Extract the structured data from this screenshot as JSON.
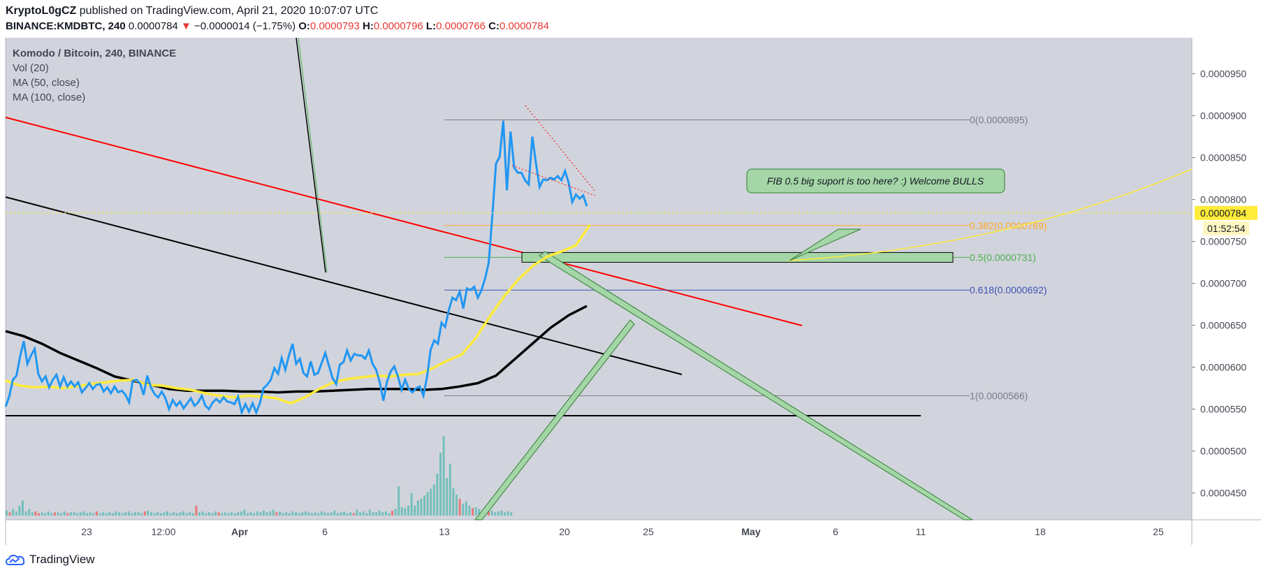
{
  "header": {
    "author": "KryptoL0gCZ",
    "published": "published on TradingView.com, April 21, 2020 10:07:07 UTC",
    "symbol": "BINANCE:KMDBTC, 240",
    "last": "0.0000784",
    "change_arrow": "▼",
    "change": "−0.0000014 (−1.75%)",
    "o_label": "O:",
    "o": "0.0000793",
    "h_label": "H:",
    "h": "0.0000796",
    "l_label": "L:",
    "l": "0.0000766",
    "c_label": "C:",
    "c": "0.0000784"
  },
  "legend": {
    "title": "Komodo / Bitcoin, 240, BINANCE",
    "vol": "Vol (20)",
    "ma50": "MA (50, close)",
    "ma100": "MA (100, close)"
  },
  "footer": {
    "brand": "TradingView"
  },
  "colors": {
    "plot_bg": "#d1d4dc",
    "price_line": "#2196f3",
    "ma50": "#ffeb3b",
    "ma100": "#000000",
    "red_trend": "#ff0000",
    "fib_0": "#787b86",
    "fib_382": "#ffa726",
    "fib_05": "#4caf50",
    "fib_618": "#3f51b5",
    "vol_up": "#4db6ac",
    "vol_down": "#ef5350",
    "zone": "#a5d6a7"
  },
  "chart_data": {
    "type": "line",
    "x_tick_labels": [
      "23",
      "12:00",
      "Apr",
      "6",
      "13",
      "20",
      "25",
      "May",
      "6",
      "11",
      "18",
      "25"
    ],
    "y_tick_labels": [
      "0.0000950",
      "0.0000900",
      "0.0000850",
      "0.0000800",
      "0.0000750",
      "0.0000700",
      "0.0000650",
      "0.0000600",
      "0.0000550",
      "0.0000500",
      "0.0000450"
    ],
    "y_ticks": [
      9.5e-05,
      9e-05,
      8.5e-05,
      8e-05,
      7.5e-05,
      7e-05,
      6.5e-05,
      6e-05,
      5.5e-05,
      5e-05,
      4.5e-05
    ],
    "ylim": [
      4.18e-05,
      9.93e-05
    ],
    "last_price": 7.84e-05,
    "last_price_label": "0.0000784",
    "countdown": "01:52:54",
    "fib_levels": [
      {
        "ratio_label": "0",
        "value": 8.95e-05,
        "label": "0(0.0000895)",
        "color": "#787b86"
      },
      {
        "ratio_label": "0.382",
        "value": 7.69e-05,
        "label": "0.382(0.0000769)",
        "color": "#ffa726"
      },
      {
        "ratio_label": "0.5",
        "value": 7.31e-05,
        "label": "0.5(0.0000731)",
        "color": "#4caf50"
      },
      {
        "ratio_label": "0.618",
        "value": 6.92e-05,
        "label": "0.618(0.0000692)",
        "color": "#3f51b5"
      },
      {
        "ratio_label": "1",
        "value": 5.66e-05,
        "label": "1(0.0000566)",
        "color": "#787b86"
      }
    ],
    "annotation": "FIB 0.5 big suport is too here? :) Welcome BULLS",
    "series": [
      {
        "values": [
          5.53e-05,
          5.65e-05,
          5.85e-05,
          5.9e-05,
          6.13e-05,
          6.31e-05,
          6.04e-05,
          6.14e-05,
          6.22e-05,
          5.92e-05,
          5.83e-05,
          5.89e-05,
          5.76e-05,
          5.85e-05,
          5.91e-05,
          5.77e-05,
          5.88e-05,
          5.77e-05,
          5.83e-05,
          5.77e-05,
          5.82e-05,
          5.7e-05,
          5.75e-05,
          5.81e-05,
          5.74e-05,
          5.79e-05,
          5.8e-05,
          5.71e-05,
          5.76e-05,
          5.69e-05,
          5.77e-05,
          5.7e-05,
          5.72e-05,
          5.67e-05,
          5.58e-05,
          5.84e-05,
          5.85e-05,
          5.81e-05,
          5.67e-05,
          5.9e-05,
          5.76e-05,
          5.68e-05,
          5.64e-05,
          5.71e-05,
          5.63e-05,
          5.5e-05,
          5.61e-05,
          5.54e-05,
          5.59e-05,
          5.51e-05,
          5.57e-05,
          5.63e-05,
          5.54e-05,
          5.58e-05,
          5.66e-05,
          5.54e-05,
          5.5e-05,
          5.58e-05,
          5.62e-05,
          5.58e-05,
          5.64e-05,
          5.59e-05,
          5.58e-05,
          5.56e-05,
          5.65e-05,
          5.46e-05,
          5.56e-05,
          5.47e-05,
          5.57e-05,
          5.46e-05,
          5.57e-05,
          5.75e-05,
          5.79e-05,
          5.85e-05,
          5.99e-05,
          5.92e-05,
          6.11e-05,
          5.97e-05,
          6.14e-05,
          6.28e-05,
          6.04e-05,
          6.1e-05,
          5.93e-05,
          5.89e-05,
          6.07e-05,
          5.91e-05,
          5.93e-05,
          6.05e-05,
          6.17e-05,
          6.02e-05,
          5.87e-05,
          5.8e-05,
          6.03e-05,
          6.06e-05,
          6.2e-05,
          6.08e-05,
          6.16e-05,
          6.14e-05,
          6.14e-05,
          6.1e-05,
          6.2e-05,
          6.04e-05,
          5.97e-05,
          5.82e-05,
          5.6e-05,
          5.83e-05,
          5.95e-05,
          6.01e-05,
          5.89e-05,
          5.73e-05,
          5.85e-05,
          5.74e-05,
          5.7e-05,
          5.75e-05,
          5.77e-05,
          5.66e-05,
          5.88e-05,
          6.21e-05,
          6.32e-05,
          6.28e-05,
          6.53e-05,
          6.48e-05,
          6.68e-05,
          6.83e-05,
          6.8e-05,
          6.9e-05,
          6.7e-05,
          6.94e-05,
          6.92e-05,
          6.96e-05,
          6.83e-05,
          6.92e-05,
          7.06e-05,
          7.25e-05,
          7.81e-05,
          8.43e-05,
          8.51e-05,
          8.94e-05,
          8.11e-05,
          8.81e-05,
          8.38e-05,
          8.32e-05,
          8.32e-05,
          8.23e-05,
          8.18e-05,
          8.75e-05,
          8.43e-05,
          8.15e-05,
          8.24e-05,
          8.23e-05,
          8.26e-05,
          8.24e-05,
          8.28e-05,
          8.23e-05,
          8.34e-05,
          8.2e-05,
          7.97e-05,
          8.06e-05,
          8.01e-05,
          8.05e-05,
          7.92e-05
        ]
      },
      {
        "name": "MA (50, close)",
        "values": [
          5.84e-05,
          5.78e-05,
          5.76e-05,
          5.77e-05,
          5.75e-05,
          5.77e-05,
          5.8e-05,
          5.82e-05,
          5.84e-05,
          5.85e-05,
          5.79e-05,
          5.78e-05,
          5.75e-05,
          5.73e-05,
          5.69e-05,
          5.66e-05,
          5.64e-05,
          5.66e-05,
          5.65e-05,
          5.63e-05,
          5.57e-05,
          5.64e-05,
          5.74e-05,
          5.82e-05,
          5.86e-05,
          5.88e-05,
          5.9e-05,
          5.89e-05,
          5.91e-05,
          5.92e-05,
          5.99e-05,
          6.08e-05,
          6.15e-05,
          6.35e-05,
          6.61e-05,
          6.85e-05,
          7.05e-05,
          7.21e-05,
          7.32e-05,
          7.38e-05,
          7.45e-05,
          7.7e-05
        ]
      },
      {
        "name": "MA (100, close)",
        "values": [
          6.43e-05,
          6.37e-05,
          6.28e-05,
          6.17e-05,
          6.08e-05,
          5.99e-05,
          5.89e-05,
          5.84e-05,
          5.79e-05,
          5.74e-05,
          5.72e-05,
          5.72e-05,
          5.72e-05,
          5.71e-05,
          5.71e-05,
          5.7e-05,
          5.71e-05,
          5.71e-05,
          5.72e-05,
          5.73e-05,
          5.74e-05,
          5.74e-05,
          5.74e-05,
          5.73e-05,
          5.74e-05,
          5.77e-05,
          5.81e-05,
          5.9e-05,
          6.09e-05,
          6.28e-05,
          6.47e-05,
          6.62e-05,
          6.73e-05
        ]
      }
    ],
    "volume": {
      "values": [
        0.06,
        0.04,
        0.08,
        0.05,
        0.12,
        0.18,
        0.05,
        0.08,
        0.04,
        0.05,
        0.03,
        0.04,
        0.03,
        0.05,
        0.03,
        0.04,
        0.04,
        0.03,
        0.05,
        0.03,
        0.04,
        0.04,
        0.03,
        0.04,
        0.05,
        0.03,
        0.04,
        0.03,
        0.05,
        0.03,
        0.04,
        0.03,
        0.04,
        0.03,
        0.05,
        0.04,
        0.03,
        0.04,
        0.05,
        0.03,
        0.04,
        0.04,
        0.03,
        0.05,
        0.06,
        0.04,
        0.03,
        0.04,
        0.03,
        0.04,
        0.05,
        0.03,
        0.04,
        0.03,
        0.04,
        0.05,
        0.03,
        0.04,
        0.03,
        0.12,
        0.04,
        0.05,
        0.03,
        0.04,
        0.03,
        0.05,
        0.04,
        0.03,
        0.04,
        0.03,
        0.04,
        0.03,
        0.04,
        0.05,
        0.07,
        0.03,
        0.04,
        0.03,
        0.05,
        0.04,
        0.06,
        0.04,
        0.05,
        0.07,
        0.04,
        0.05,
        0.03,
        0.04,
        0.03,
        0.05,
        0.04,
        0.03,
        0.04,
        0.05,
        0.04,
        0.03,
        0.04,
        0.03,
        0.05,
        0.04,
        0.03,
        0.04,
        0.06,
        0.03,
        0.04,
        0.05,
        0.03,
        0.04,
        0.03,
        0.07,
        0.04,
        0.05,
        0.03,
        0.07,
        0.04,
        0.04,
        0.06,
        0.04,
        0.05,
        0.03,
        0.06,
        0.08,
        0.35,
        0.1,
        0.09,
        0.12,
        0.27,
        0.12,
        0.18,
        0.2,
        0.24,
        0.28,
        0.32,
        0.37,
        0.5,
        0.75,
        0.95,
        0.45,
        0.62,
        0.33,
        0.25,
        0.2,
        0.14,
        0.17,
        0.12,
        0.09,
        0.1,
        0.08,
        0.06,
        0.07,
        0.05,
        0.06,
        0.04,
        0.05,
        0.06,
        0.04,
        0.05,
        0.04
      ],
      "down_bars": [
        1,
        9,
        10,
        15,
        19,
        28,
        43,
        59,
        66,
        84,
        108,
        120,
        141,
        145,
        150
      ]
    }
  }
}
